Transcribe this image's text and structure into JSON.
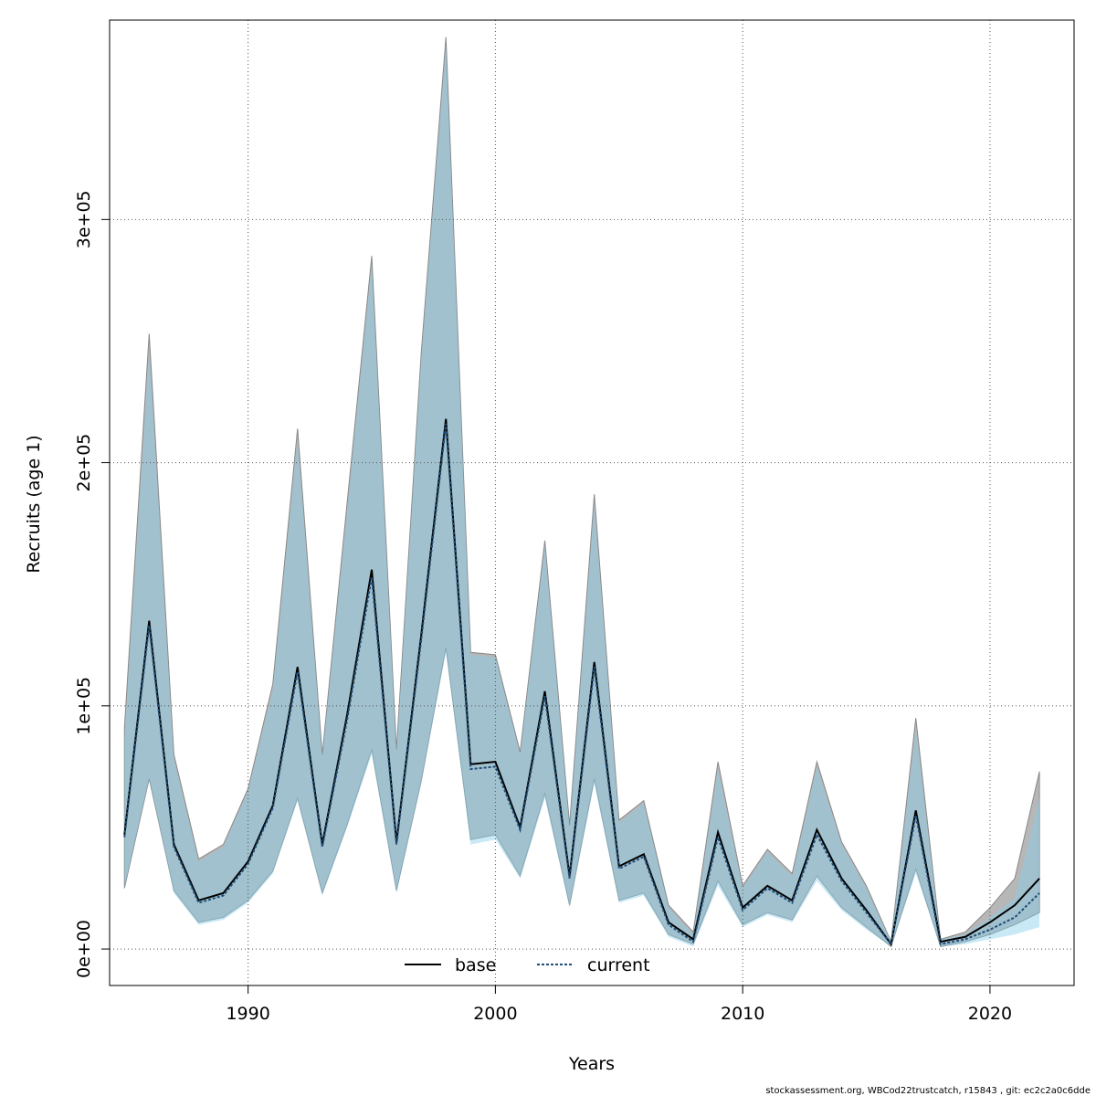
{
  "chart_data": {
    "type": "area",
    "xlabel": "Years",
    "ylabel": "Recruits (age 1)",
    "xlim": [
      1984.4,
      2023.4
    ],
    "ylim": [
      -15000,
      382000
    ],
    "xticks": [
      1990,
      2000,
      2010,
      2020
    ],
    "xtick_labels": [
      "1990",
      "2000",
      "2010",
      "2020"
    ],
    "yticks": [
      0,
      100000,
      200000,
      300000
    ],
    "ytick_labels": [
      "0e+00",
      "1e+05",
      "2e+05",
      "3e+05"
    ],
    "grid": true,
    "legend_position": "bottom-center",
    "x": [
      1985,
      1986,
      1987,
      1988,
      1989,
      1990,
      1991,
      1992,
      1993,
      1994,
      1995,
      1996,
      1997,
      1998,
      1999,
      2000,
      2001,
      2002,
      2003,
      2004,
      2005,
      2006,
      2007,
      2008,
      2009,
      2010,
      2011,
      2012,
      2013,
      2014,
      2015,
      2016,
      2017,
      2018,
      2019,
      2020,
      2021,
      2022
    ],
    "series": [
      {
        "name": "base",
        "color": "#000000",
        "band_color": "#999999",
        "values": [
          47000,
          135000,
          43000,
          20000,
          23000,
          36000,
          59000,
          116000,
          43000,
          96000,
          156000,
          44000,
          129000,
          218000,
          76000,
          77000,
          50000,
          106000,
          30000,
          118000,
          34000,
          39000,
          11000,
          4000,
          48000,
          17000,
          26000,
          20000,
          49000,
          29000,
          16000,
          2000,
          57000,
          3000,
          5000,
          11000,
          18000,
          29000
        ],
        "lower": [
          25000,
          70000,
          24000,
          11000,
          13000,
          20000,
          32000,
          62000,
          23000,
          51000,
          82000,
          24000,
          69000,
          124000,
          45000,
          47000,
          30000,
          64000,
          18000,
          70000,
          20000,
          23000,
          6000,
          2000,
          28000,
          10000,
          15000,
          12000,
          30000,
          17000,
          9000,
          1000,
          33000,
          1000,
          3000,
          6000,
          10000,
          15000
        ],
        "upper": [
          91000,
          253000,
          80000,
          37000,
          43000,
          66000,
          109000,
          214000,
          80000,
          183000,
          285000,
          82000,
          245000,
          375000,
          122000,
          121000,
          81000,
          168000,
          51000,
          187000,
          53000,
          61000,
          18000,
          7000,
          77000,
          26000,
          41000,
          31000,
          77000,
          44000,
          26000,
          3000,
          95000,
          4000,
          7000,
          17000,
          29000,
          73000
        ]
      },
      {
        "name": "current",
        "color": "#1f4e79",
        "band_color": "#87ceeb",
        "values": [
          46000,
          133000,
          42000,
          19000,
          22000,
          35000,
          58000,
          114000,
          42000,
          94000,
          153000,
          43000,
          127000,
          216000,
          74000,
          75000,
          49000,
          104000,
          29000,
          116000,
          33000,
          38000,
          10000,
          3000,
          46000,
          16000,
          25000,
          19000,
          47000,
          28000,
          15000,
          2000,
          55000,
          2000,
          4000,
          8000,
          13000,
          23000
        ],
        "lower": [
          25000,
          70000,
          23000,
          10000,
          12000,
          19000,
          31000,
          61000,
          22000,
          50000,
          80000,
          23000,
          68000,
          122000,
          43000,
          45000,
          29000,
          62000,
          17000,
          68000,
          19000,
          22000,
          5000,
          1000,
          26000,
          9000,
          14000,
          11000,
          28000,
          16000,
          8000,
          1000,
          31000,
          1000,
          2000,
          4000,
          6000,
          9000
        ],
        "upper": [
          87000,
          247000,
          78000,
          36000,
          42000,
          65000,
          107000,
          210000,
          79000,
          180000,
          282000,
          81000,
          243000,
          372000,
          121000,
          120000,
          80000,
          166000,
          50000,
          184000,
          52000,
          60000,
          17000,
          6000,
          74000,
          25000,
          40000,
          30000,
          75000,
          43000,
          25000,
          3000,
          91000,
          4000,
          6000,
          13000,
          21000,
          62000
        ]
      }
    ],
    "footer": "stockassessment.org, WBCod22trustcatch, r15843 , git: ec2c2a0c6dde"
  }
}
